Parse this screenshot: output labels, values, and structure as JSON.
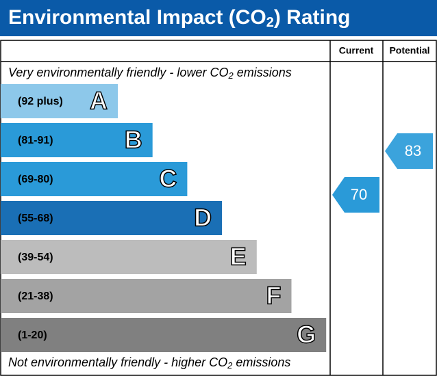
{
  "title": {
    "main": "Environmental Impact (CO",
    "sub": "2",
    "end": ") Rating"
  },
  "headers": {
    "current": "Current",
    "potential": "Potential"
  },
  "top_note": {
    "main": "Very environmentally friendly - lower CO",
    "sub": "2",
    "end": " emissions"
  },
  "bottom_note": {
    "main": "Not environmentally friendly - higher CO",
    "sub": "2",
    "end": " emissions"
  },
  "bands": [
    {
      "range": "(92 plus)",
      "letter": "A",
      "color": "#8dc8ea"
    },
    {
      "range": "(81-91)",
      "letter": "B",
      "color": "#2a9ad8"
    },
    {
      "range": "(69-80)",
      "letter": "C",
      "color": "#2a9ad8"
    },
    {
      "range": "(55-68)",
      "letter": "D",
      "color": "#1a6fb5"
    },
    {
      "range": "(39-54)",
      "letter": "E",
      "color": "#bcbcbc"
    },
    {
      "range": "(21-38)",
      "letter": "F",
      "color": "#a3a3a3"
    },
    {
      "range": "(1-20)",
      "letter": "G",
      "color": "#808080"
    }
  ],
  "current": {
    "value": 70,
    "color": "#2a9ad8"
  },
  "potential": {
    "value": 83,
    "color": "#3ba3dc"
  }
}
